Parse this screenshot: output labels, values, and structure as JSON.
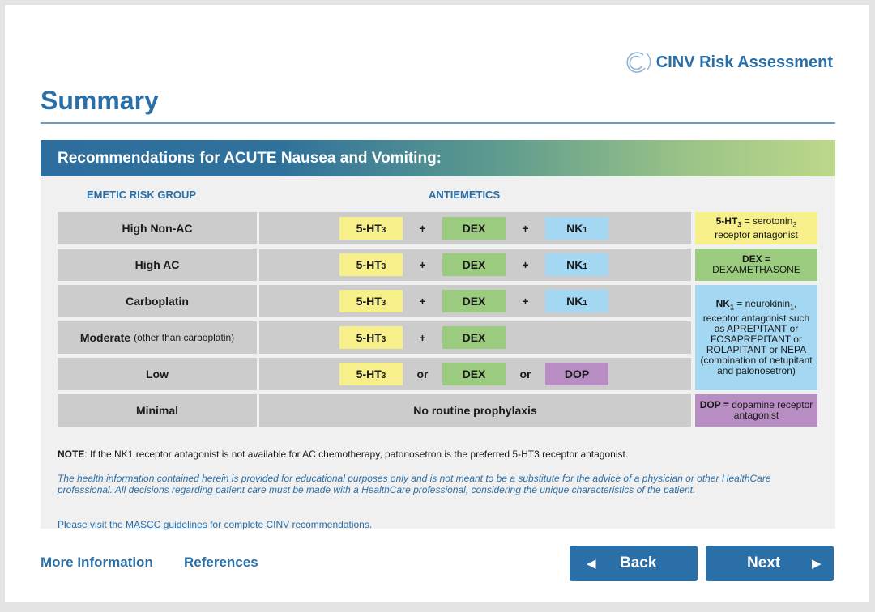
{
  "brand": {
    "name": "CINV Risk Assessment"
  },
  "page": {
    "title": "Summary"
  },
  "panel": {
    "banner": "Recommendations for ACUTE Nausea and Vomiting:",
    "headers": {
      "risk": "EMETIC RISK GROUP",
      "antiemetics": "ANTIEMETICS"
    },
    "rows": [
      {
        "risk": "High Non-AC",
        "risk_suffix": "",
        "a": "5-HT",
        "a_sub": "3",
        "op1": "+",
        "b": "DEX",
        "op2": "+",
        "c": "NK",
        "c_sub": "1",
        "c_color": "blue"
      },
      {
        "risk": "High AC",
        "risk_suffix": "",
        "a": "5-HT",
        "a_sub": "3",
        "op1": "+",
        "b": "DEX",
        "op2": "+",
        "c": "NK",
        "c_sub": "1",
        "c_color": "blue"
      },
      {
        "risk": "Carboplatin",
        "risk_suffix": "",
        "a": "5-HT",
        "a_sub": "3",
        "op1": "+",
        "b": "DEX",
        "op2": "+",
        "c": "NK",
        "c_sub": "1",
        "c_color": "blue"
      },
      {
        "risk": "Moderate",
        "risk_suffix": "(other than carboplatin)",
        "a": "5-HT",
        "a_sub": "3",
        "op1": "+",
        "b": "DEX"
      },
      {
        "risk": "Low",
        "risk_suffix": "",
        "a": "5-HT",
        "a_sub": "3",
        "op1": "or",
        "b": "DEX",
        "op2": "or",
        "c": "DOP",
        "c_color": "purple"
      },
      {
        "risk": "Minimal",
        "risk_suffix": "",
        "none": "No routine prophylaxis"
      }
    ],
    "legend": {
      "ht3": {
        "term": "5-HT",
        "sub": "3",
        "def1": " = serotonin",
        "def_sub": "3",
        "def2": " receptor antagonist",
        "color": "#f7ef8a"
      },
      "dex": {
        "term": "DEX =",
        "def": "DEXAMETHASONE",
        "color": "#9acb7e"
      },
      "nk1": {
        "term": "NK",
        "sub": "1",
        "def1": " = neurokinin",
        "def_sub": "1",
        "def2": ", receptor antagonist such as APREPITANT or FOSAPREPITANT or ROLAPITANT or NEPA (combination of netupitant and palonosetron)",
        "color": "#a3d7f2"
      },
      "dop": {
        "term": "DOP =",
        "def": " dopamine receptor antagonist",
        "color": "#b88dc4"
      }
    },
    "note_label": "NOTE",
    "note_text": ":  If the NK1 receptor antagonist is not available for AC chemotherapy, patonosetron is the preferred 5-HT3 receptor antagonist.",
    "disclaimer": "The health information contained herein is provided for educational purposes only and is not meant to be a substitute for the advice of a physician or other HealthCare professional. All decisions regarding patient care must be made with a HealthCare professional, considering the unique characteristics of the patient.",
    "visit_before": "Please visit the ",
    "visit_link": "MASCC guidelines",
    "visit_after": " for complete CINV recommendations."
  },
  "footer": {
    "more_info": "More Information",
    "references": "References",
    "back": "Back",
    "next": "Next",
    "back_icon": "triangle-left-icon",
    "next_icon": "triangle-right-icon"
  }
}
